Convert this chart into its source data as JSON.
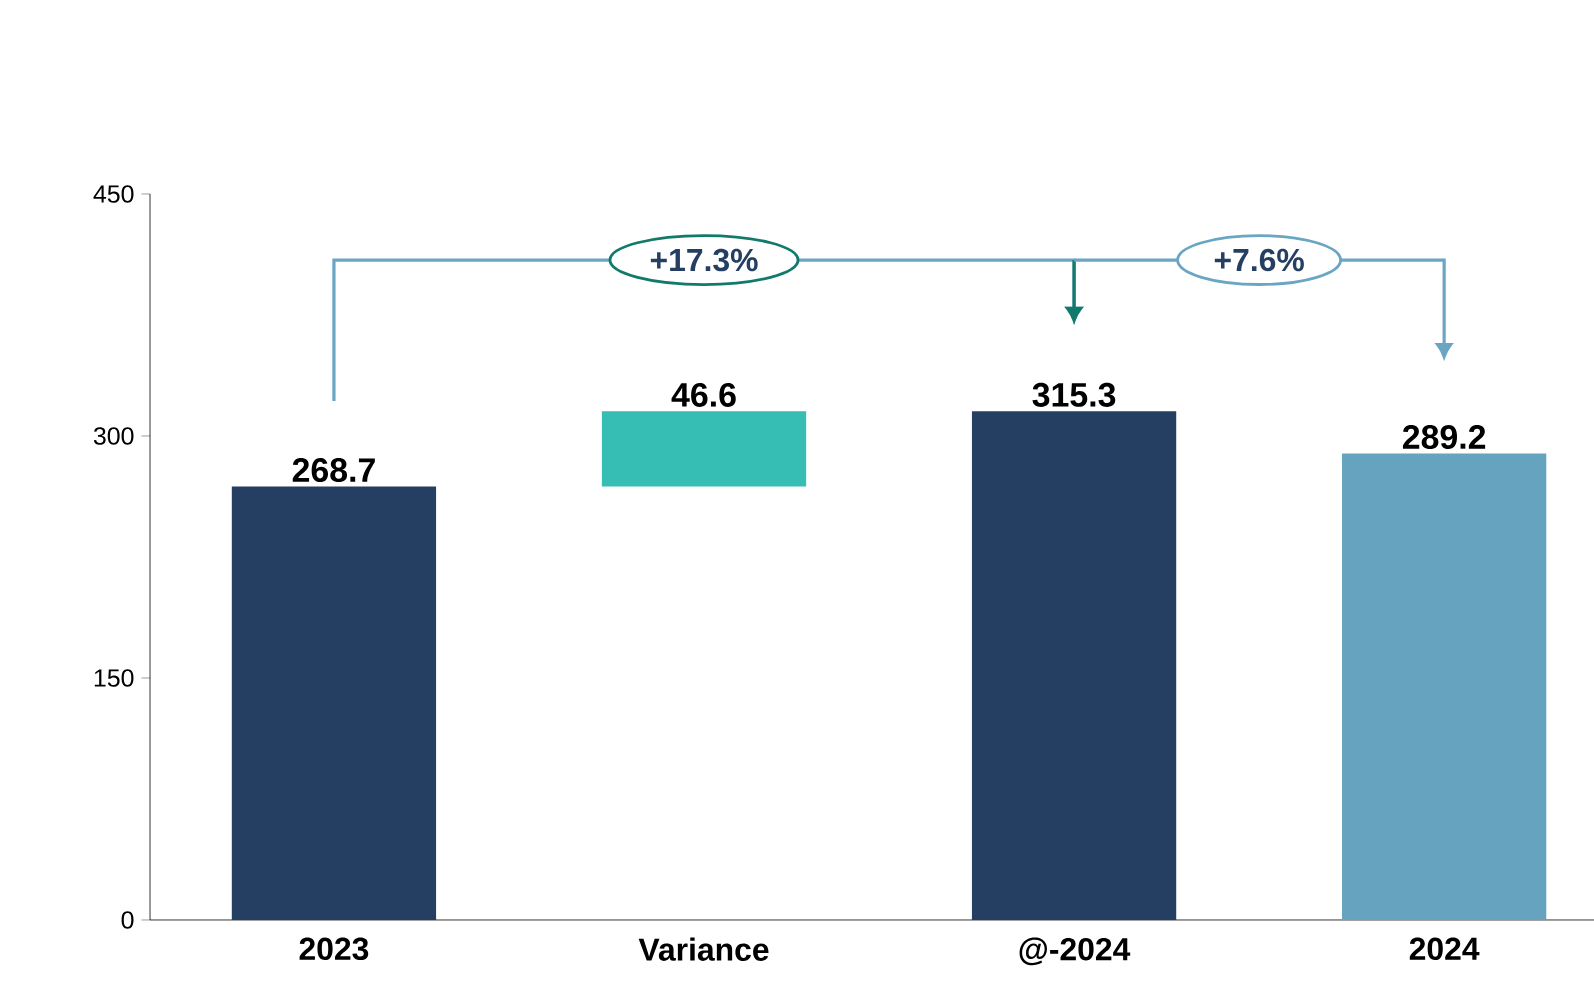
{
  "chart_data": {
    "type": "bar",
    "categories": [
      "2023",
      "Variance",
      "@-2024",
      "2024"
    ],
    "values": [
      268.7,
      46.6,
      315.3,
      289.2
    ],
    "base": [
      0,
      268.7,
      0,
      0
    ],
    "colors": [
      "#243f61",
      "#36bdb4",
      "#243f61",
      "#66a3bf"
    ],
    "ylim": [
      0,
      450
    ],
    "yticks": [
      0,
      150,
      300,
      450
    ],
    "data_labels": true,
    "grid": false,
    "legend": false,
    "annotations": [
      "+17.3%",
      "+7.6%"
    ]
  }
}
